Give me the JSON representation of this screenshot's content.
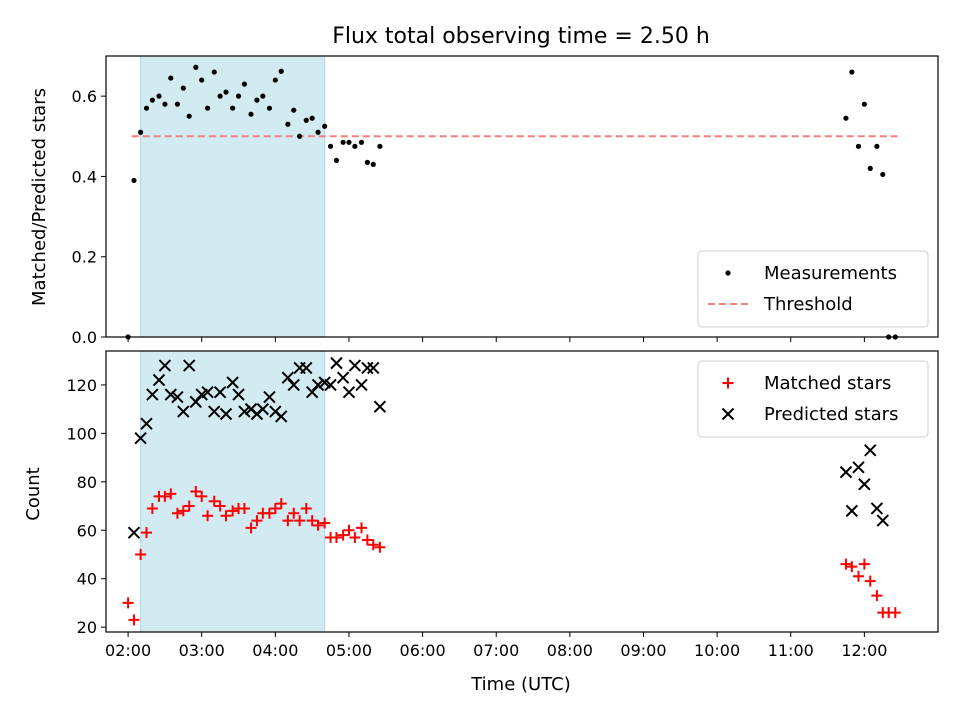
{
  "title": "Flux total observing time = 2.50 h",
  "colors": {
    "shade": "#add8e6",
    "threshold": "#f08080",
    "matched": "#ff0000",
    "predicted": "#000000",
    "measurement": "#000000"
  },
  "chart_data": [
    {
      "type": "scatter",
      "ylabel": "Matched/Predicted stars",
      "xlim": [
        1.7,
        13.0
      ],
      "ylim": [
        0,
        0.7
      ],
      "yticks": [
        0,
        0.2,
        0.4,
        0.6
      ],
      "ytick_labels": [
        "0.0",
        "0.2",
        "0.4",
        "0.6"
      ],
      "shaded_interval": [
        2.17,
        4.67
      ],
      "legend_position": "lower-right",
      "threshold": {
        "name": "Threshold",
        "y": 0.5,
        "x_range": [
          2.05,
          12.45
        ]
      },
      "series": [
        {
          "name": "Measurements",
          "marker": "dot",
          "points": [
            [
              2.0,
              0.0
            ],
            [
              2.08,
              0.39
            ],
            [
              2.17,
              0.51
            ],
            [
              2.25,
              0.57
            ],
            [
              2.33,
              0.59
            ],
            [
              2.42,
              0.6
            ],
            [
              2.5,
              0.58
            ],
            [
              2.58,
              0.645
            ],
            [
              2.67,
              0.58
            ],
            [
              2.75,
              0.62
            ],
            [
              2.83,
              0.55
            ],
            [
              2.92,
              0.672
            ],
            [
              3.0,
              0.64
            ],
            [
              3.08,
              0.57
            ],
            [
              3.17,
              0.66
            ],
            [
              3.25,
              0.6
            ],
            [
              3.33,
              0.61
            ],
            [
              3.42,
              0.57
            ],
            [
              3.5,
              0.6
            ],
            [
              3.58,
              0.63
            ],
            [
              3.67,
              0.555
            ],
            [
              3.75,
              0.59
            ],
            [
              3.83,
              0.6
            ],
            [
              3.92,
              0.57
            ],
            [
              4.0,
              0.64
            ],
            [
              4.08,
              0.662
            ],
            [
              4.17,
              0.53
            ],
            [
              4.25,
              0.565
            ],
            [
              4.33,
              0.5
            ],
            [
              4.42,
              0.54
            ],
            [
              4.5,
              0.545
            ],
            [
              4.58,
              0.51
            ],
            [
              4.67,
              0.525
            ],
            [
              4.75,
              0.475
            ],
            [
              4.83,
              0.44
            ],
            [
              4.92,
              0.485
            ],
            [
              5.0,
              0.485
            ],
            [
              5.08,
              0.475
            ],
            [
              5.17,
              0.485
            ],
            [
              5.25,
              0.435
            ],
            [
              5.33,
              0.43
            ],
            [
              5.42,
              0.475
            ],
            [
              11.75,
              0.545
            ],
            [
              11.83,
              0.66
            ],
            [
              11.92,
              0.475
            ],
            [
              12.0,
              0.58
            ],
            [
              12.08,
              0.42
            ],
            [
              12.17,
              0.475
            ],
            [
              12.25,
              0.405
            ],
            [
              12.33,
              0.0
            ],
            [
              12.42,
              0.0
            ]
          ]
        }
      ]
    },
    {
      "type": "scatter",
      "xlabel": "Time (UTC)",
      "ylabel": "Count",
      "xlim": [
        1.7,
        13.0
      ],
      "ylim": [
        18,
        134
      ],
      "yticks": [
        20,
        40,
        60,
        80,
        100,
        120
      ],
      "xticks": [
        2,
        3,
        4,
        5,
        6,
        7,
        8,
        9,
        10,
        11,
        12
      ],
      "xtick_labels": [
        "02:00",
        "03:00",
        "04:00",
        "05:00",
        "06:00",
        "07:00",
        "08:00",
        "09:00",
        "10:00",
        "11:00",
        "12:00"
      ],
      "shaded_interval": [
        2.17,
        4.67
      ],
      "legend_position": "upper-right",
      "series": [
        {
          "name": "Matched stars",
          "marker": "plus",
          "points": [
            [
              2.0,
              30
            ],
            [
              2.08,
              23
            ],
            [
              2.17,
              50
            ],
            [
              2.25,
              59
            ],
            [
              2.33,
              69
            ],
            [
              2.42,
              74
            ],
            [
              2.5,
              74
            ],
            [
              2.58,
              75
            ],
            [
              2.67,
              67
            ],
            [
              2.75,
              68
            ],
            [
              2.83,
              70
            ],
            [
              2.92,
              76
            ],
            [
              3.0,
              74
            ],
            [
              3.08,
              66
            ],
            [
              3.17,
              72
            ],
            [
              3.25,
              70
            ],
            [
              3.33,
              66
            ],
            [
              3.42,
              68
            ],
            [
              3.5,
              69
            ],
            [
              3.58,
              69
            ],
            [
              3.67,
              61
            ],
            [
              3.75,
              64
            ],
            [
              3.83,
              67
            ],
            [
              3.92,
              67
            ],
            [
              4.0,
              69
            ],
            [
              4.08,
              71
            ],
            [
              4.17,
              64
            ],
            [
              4.25,
              67
            ],
            [
              4.33,
              64
            ],
            [
              4.42,
              69
            ],
            [
              4.5,
              64
            ],
            [
              4.58,
              62
            ],
            [
              4.67,
              63
            ],
            [
              4.75,
              57
            ],
            [
              4.83,
              57
            ],
            [
              4.92,
              58
            ],
            [
              5.0,
              60
            ],
            [
              5.08,
              57
            ],
            [
              5.17,
              61
            ],
            [
              5.25,
              56
            ],
            [
              5.33,
              54
            ],
            [
              5.42,
              53
            ],
            [
              11.75,
              46
            ],
            [
              11.83,
              45
            ],
            [
              11.92,
              41
            ],
            [
              12.0,
              46
            ],
            [
              12.08,
              39
            ],
            [
              12.17,
              33
            ],
            [
              12.25,
              26
            ],
            [
              12.33,
              26
            ],
            [
              12.42,
              26
            ]
          ]
        },
        {
          "name": "Predicted stars",
          "marker": "x",
          "points": [
            [
              2.08,
              59
            ],
            [
              2.17,
              98
            ],
            [
              2.25,
              104
            ],
            [
              2.33,
              116
            ],
            [
              2.42,
              122
            ],
            [
              2.5,
              128
            ],
            [
              2.58,
              116
            ],
            [
              2.67,
              115
            ],
            [
              2.75,
              109
            ],
            [
              2.83,
              128
            ],
            [
              2.92,
              113
            ],
            [
              3.0,
              116
            ],
            [
              3.08,
              117
            ],
            [
              3.17,
              109
            ],
            [
              3.25,
              117
            ],
            [
              3.33,
              108
            ],
            [
              3.42,
              121
            ],
            [
              3.5,
              116
            ],
            [
              3.58,
              109
            ],
            [
              3.67,
              110
            ],
            [
              3.75,
              108
            ],
            [
              3.83,
              110
            ],
            [
              3.92,
              115
            ],
            [
              4.0,
              109
            ],
            [
              4.08,
              107
            ],
            [
              4.17,
              123
            ],
            [
              4.25,
              120
            ],
            [
              4.33,
              127
            ],
            [
              4.42,
              127
            ],
            [
              4.5,
              117
            ],
            [
              4.58,
              120
            ],
            [
              4.67,
              121
            ],
            [
              4.75,
              120
            ],
            [
              4.83,
              129
            ],
            [
              4.92,
              123
            ],
            [
              5.0,
              117
            ],
            [
              5.08,
              128
            ],
            [
              5.17,
              120
            ],
            [
              5.25,
              127
            ],
            [
              5.33,
              127
            ],
            [
              5.42,
              111
            ],
            [
              11.75,
              84
            ],
            [
              11.83,
              68
            ],
            [
              11.92,
              86
            ],
            [
              12.0,
              79
            ],
            [
              12.08,
              93
            ],
            [
              12.17,
              69
            ],
            [
              12.25,
              64
            ]
          ]
        }
      ]
    }
  ]
}
